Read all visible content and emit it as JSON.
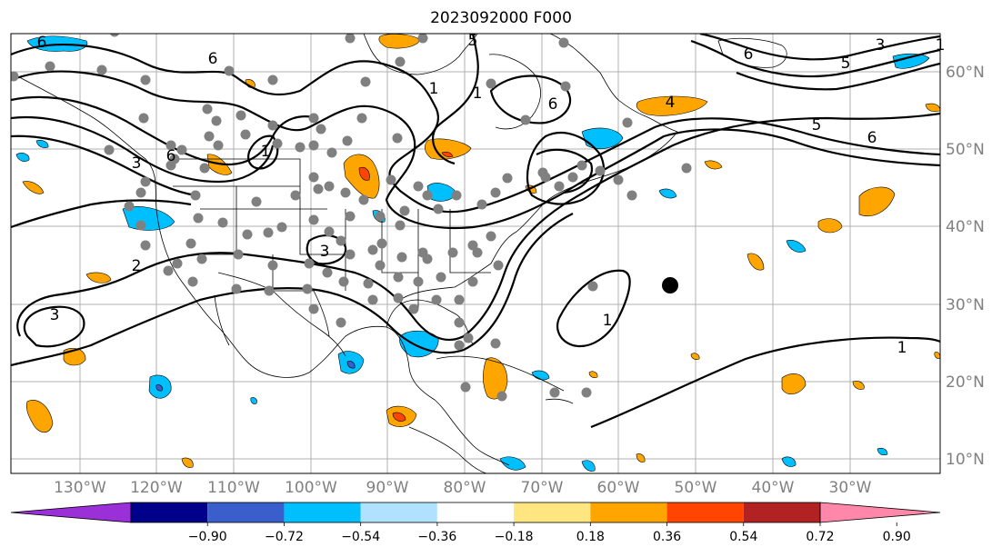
{
  "title": "2023092000 F000",
  "colors": {
    "land_lines": "#000000",
    "grid": "#b0b0b0",
    "station_dot": "#808080",
    "marker": "#000000",
    "contour": "#000000"
  },
  "map": {
    "lon_range": [
      -140,
      -19
    ],
    "lat_range": [
      7,
      64
    ],
    "lon_ticks": [
      "130°W",
      "120°W",
      "110°W",
      "100°W",
      "90°W",
      "80°W",
      "70°W",
      "60°W",
      "50°W",
      "40°W",
      "30°W"
    ],
    "lat_ticks": [
      "10°N",
      "20°N",
      "30°N",
      "40°N",
      "50°N",
      "60°N"
    ],
    "grid": true
  },
  "contour_labels": [
    "6",
    "6",
    "1",
    "6",
    "1",
    "1",
    "6",
    "5",
    "4",
    "5",
    "6",
    "6",
    "3",
    "1",
    "3",
    "2",
    "5",
    "3",
    "3",
    "1",
    "1"
  ],
  "colorbar": {
    "colors": [
      "#9b30d9",
      "#00008b",
      "#3a5fcd",
      "#00bfff",
      "#b0e2ff",
      "#ffffff",
      "#ffe680",
      "#ffa500",
      "#ff4500",
      "#b22222",
      "#ff88aa"
    ],
    "tick_labels": [
      "−0.90",
      "−0.72",
      "−0.54",
      "−0.36",
      "−0.18",
      "0.18",
      "0.36",
      "0.54",
      "0.72",
      "0.90"
    ],
    "extend": "both"
  }
}
